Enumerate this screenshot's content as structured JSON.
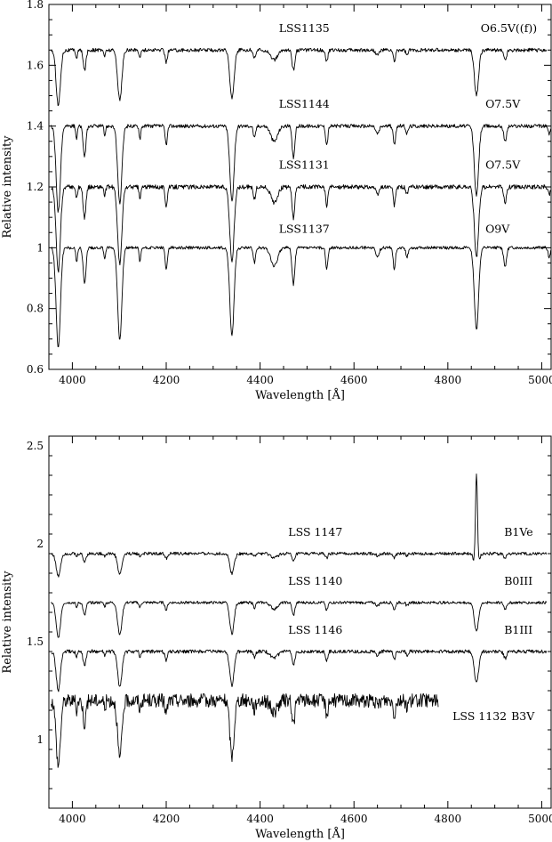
{
  "chart_data": [
    {
      "type": "line",
      "xlabel": "Wavelength [Å]",
      "ylabel": "Relative intensity",
      "xlim": [
        3950,
        5020
      ],
      "ylim": [
        0.6,
        1.8
      ],
      "xticks": [
        4000,
        4200,
        4400,
        4600,
        4800,
        5000
      ],
      "yticks": [
        0.6,
        0.8,
        1,
        1.2,
        1.4,
        1.6,
        1.8
      ],
      "yticklabels": [
        "0.6",
        "0.8",
        "1",
        "1.2",
        "1.4",
        "1.6",
        "1.8"
      ],
      "grid": false,
      "series": [
        {
          "name": "LSS1135",
          "sptype": "O6.5V((f))",
          "offset": 1.65,
          "xmax": 5010,
          "noise": 0.006,
          "depth_scale": 0.55,
          "label_x": 4440,
          "sptype_x": 4870,
          "label_y": 1.71
        },
        {
          "name": "LSS1144",
          "sptype": "O7.5V",
          "offset": 1.4,
          "xmax": 5020,
          "noise": 0.006,
          "depth_scale": 0.85,
          "label_x": 4440,
          "sptype_x": 4880,
          "label_y": 1.46
        },
        {
          "name": "LSS1131",
          "sptype": "O7.5V",
          "offset": 1.2,
          "xmax": 5020,
          "noise": 0.007,
          "depth_scale": 0.85,
          "label_x": 4440,
          "sptype_x": 4880,
          "label_y": 1.26
        },
        {
          "name": "LSS1137",
          "sptype": "O9V",
          "offset": 1.0,
          "xmax": 5020,
          "noise": 0.005,
          "depth_scale": 1.0,
          "label_x": 4440,
          "sptype_x": 4880,
          "label_y": 1.05
        }
      ]
    },
    {
      "type": "line",
      "xlabel": "Wavelength [Å]",
      "ylabel": "Relative intensity",
      "xlim": [
        3950,
        5020
      ],
      "ylim": [
        0.65,
        2.55
      ],
      "xticks": [
        4000,
        4200,
        4400,
        4600,
        4800,
        5000
      ],
      "yticks": [
        1,
        1.5,
        2,
        2.5
      ],
      "yticklabels": [
        "1",
        "1.5",
        "2",
        "2.5"
      ],
      "grid": false,
      "series": [
        {
          "name": "LSS 1147",
          "sptype": "B1Ve",
          "offset": 1.95,
          "xmax": 5010,
          "noise": 0.008,
          "depth_scale": 0.35,
          "emission_hbeta": 0.5,
          "label_x": 4460,
          "sptype_x": 4920,
          "label_y": 2.04
        },
        {
          "name": "LSS 1140",
          "sptype": "B0III",
          "offset": 1.7,
          "xmax": 5010,
          "noise": 0.007,
          "depth_scale": 0.55,
          "label_x": 4460,
          "sptype_x": 4920,
          "label_y": 1.79
        },
        {
          "name": "LSS 1146",
          "sptype": "B1III",
          "offset": 1.45,
          "xmax": 5010,
          "noise": 0.009,
          "depth_scale": 0.6,
          "label_x": 4460,
          "sptype_x": 4920,
          "label_y": 1.54
        },
        {
          "name": "LSS 1132",
          "sptype": "B3V",
          "offset": 1.2,
          "xmax": 4780,
          "noise": 0.035,
          "depth_scale": 1.0,
          "label_x": 4810,
          "sptype_x": 4935,
          "label_y": 1.1
        }
      ]
    }
  ]
}
